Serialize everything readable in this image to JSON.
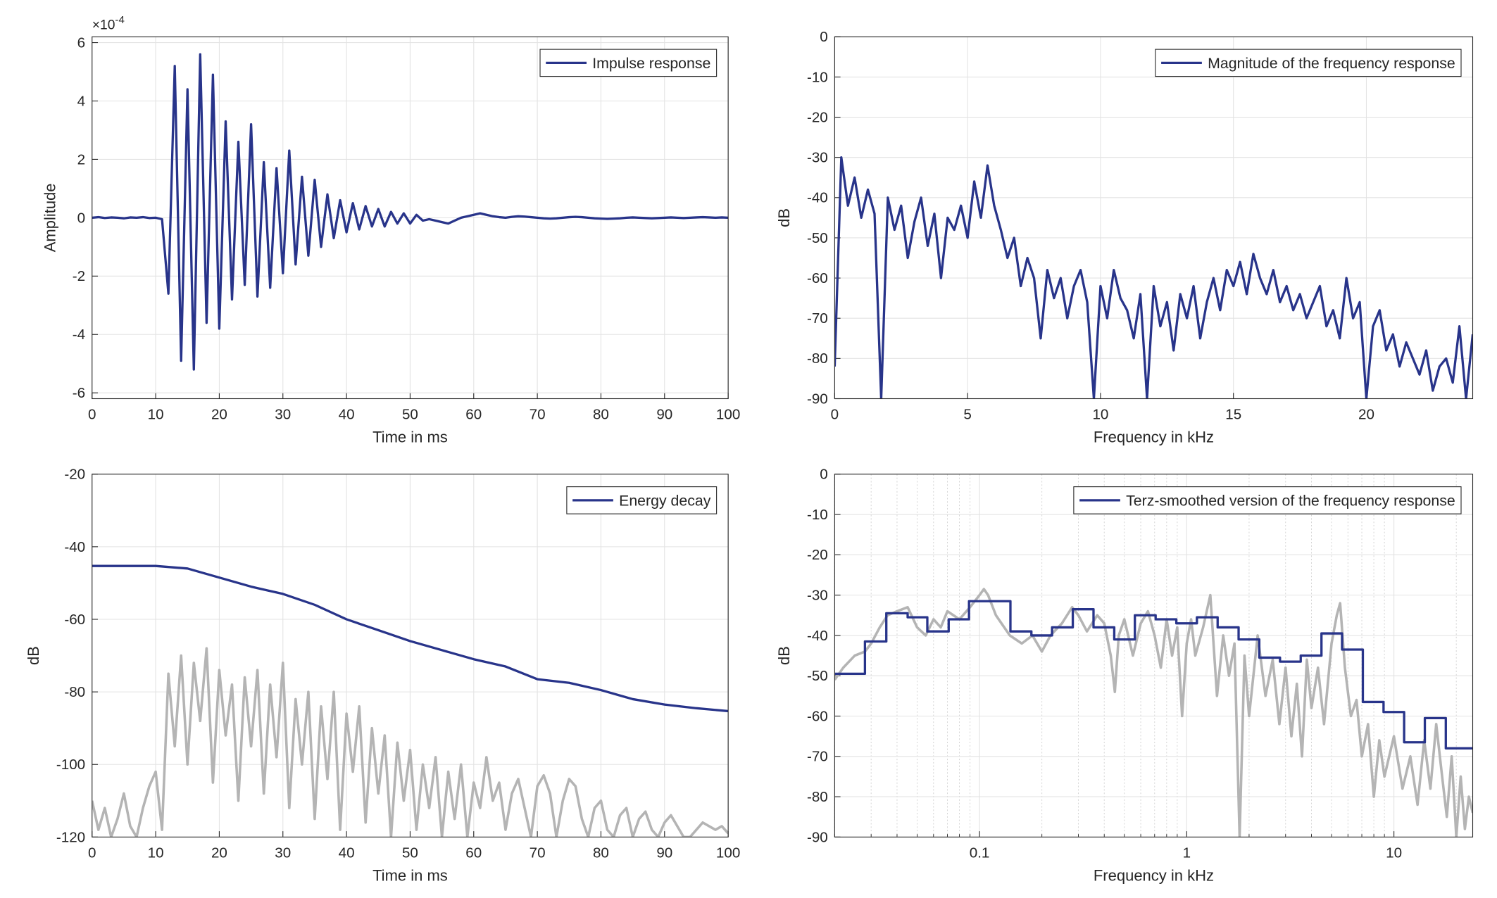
{
  "chart_data": [
    {
      "type": "line",
      "xlabel": "Time in ms",
      "ylabel": "Amplitude",
      "y_multiplier": "×10",
      "y_multiplier_exponent": "-4",
      "xlim": [
        0,
        100
      ],
      "xticks": [
        0,
        10,
        20,
        30,
        40,
        50,
        60,
        70,
        80,
        90,
        100
      ],
      "ylim": [
        -6.2,
        6.2
      ],
      "yticks": [
        -6,
        -4,
        -2,
        0,
        2,
        4,
        6
      ],
      "grid": true,
      "legend": "northeast",
      "series": [
        {
          "name": "Impulse response",
          "color": "#28348a",
          "x": [
            0,
            1,
            2,
            3,
            4,
            5,
            6,
            7,
            8,
            9,
            10,
            11,
            12,
            13,
            14,
            15,
            16,
            17,
            18,
            19,
            20,
            21,
            22,
            23,
            24,
            25,
            26,
            27,
            28,
            29,
            30,
            31,
            32,
            33,
            34,
            35,
            36,
            37,
            38,
            39,
            40,
            41,
            42,
            43,
            44,
            45,
            46,
            47,
            48,
            49,
            50,
            51,
            52,
            53,
            54,
            55,
            56,
            57,
            58,
            59,
            60,
            61,
            62,
            63,
            64,
            65,
            66,
            67,
            68,
            69,
            70,
            71,
            72,
            73,
            74,
            75,
            76,
            77,
            78,
            79,
            80,
            81,
            82,
            83,
            84,
            85,
            86,
            87,
            88,
            89,
            90,
            91,
            92,
            93,
            94,
            95,
            96,
            97,
            98,
            99,
            100
          ],
          "values": [
            0,
            0.02,
            -0.01,
            0.01,
            0,
            -0.02,
            0.01,
            0,
            0.02,
            -0.01,
            0,
            -0.05,
            -2.6,
            5.2,
            -4.9,
            4.4,
            -5.2,
            5.6,
            -3.6,
            4.9,
            -3.8,
            3.3,
            -2.8,
            2.6,
            -2.3,
            3.2,
            -2.7,
            1.9,
            -2.4,
            1.7,
            -1.9,
            2.3,
            -1.6,
            1.4,
            -1.3,
            1.3,
            -1.0,
            0.8,
            -0.7,
            0.6,
            -0.5,
            0.5,
            -0.4,
            0.4,
            -0.3,
            0.3,
            -0.3,
            0.2,
            -0.2,
            0.15,
            -0.2,
            0.1,
            -0.1,
            -0.05,
            -0.1,
            -0.15,
            -0.2,
            -0.1,
            0,
            0.05,
            0.1,
            0.15,
            0.1,
            0.05,
            0.02,
            0,
            0.03,
            0.05,
            0.04,
            0.02,
            0,
            -0.02,
            -0.03,
            -0.02,
            0,
            0.02,
            0.03,
            0.02,
            0,
            -0.02,
            -0.03,
            -0.04,
            -0.03,
            -0.02,
            0,
            0.01,
            0,
            -0.01,
            -0.02,
            -0.01,
            0,
            0.01,
            0,
            -0.01,
            0,
            0.01,
            0.02,
            0.01,
            0,
            0.01,
            0
          ]
        }
      ]
    },
    {
      "type": "line",
      "xlabel": "Frequency in kHz",
      "ylabel": "dB",
      "xlim": [
        0,
        24
      ],
      "xticks": [
        0,
        5,
        10,
        15,
        20
      ],
      "ylim": [
        -90,
        0
      ],
      "yticks": [
        -90,
        -80,
        -70,
        -60,
        -50,
        -40,
        -30,
        -20,
        -10,
        0
      ],
      "grid": true,
      "legend": "northeast",
      "series": [
        {
          "name": "Magnitude of the frequency response",
          "color": "#28348a",
          "x": [
            0,
            0.25,
            0.5,
            0.75,
            1,
            1.25,
            1.5,
            1.75,
            2,
            2.25,
            2.5,
            2.75,
            3,
            3.25,
            3.5,
            3.75,
            4,
            4.25,
            4.5,
            4.75,
            5,
            5.25,
            5.5,
            5.75,
            6,
            6.25,
            6.5,
            6.75,
            7,
            7.25,
            7.5,
            7.75,
            8,
            8.25,
            8.5,
            8.75,
            9,
            9.25,
            9.5,
            9.75,
            10,
            10.25,
            10.5,
            10.75,
            11,
            11.25,
            11.5,
            11.75,
            12,
            12.25,
            12.5,
            12.75,
            13,
            13.25,
            13.5,
            13.75,
            14,
            14.25,
            14.5,
            14.75,
            15,
            15.25,
            15.5,
            15.75,
            16,
            16.25,
            16.5,
            16.75,
            17,
            17.25,
            17.5,
            17.75,
            18,
            18.25,
            18.5,
            18.75,
            19,
            19.25,
            19.5,
            19.75,
            20,
            20.25,
            20.5,
            20.75,
            21,
            21.25,
            21.5,
            21.75,
            22,
            22.25,
            22.5,
            22.75,
            23,
            23.25,
            23.5,
            23.75,
            24
          ],
          "values": [
            -82,
            -30,
            -42,
            -35,
            -45,
            -38,
            -44,
            -90,
            -40,
            -48,
            -42,
            -55,
            -46,
            -40,
            -52,
            -44,
            -60,
            -45,
            -48,
            -42,
            -50,
            -36,
            -45,
            -32,
            -42,
            -48,
            -55,
            -50,
            -62,
            -55,
            -60,
            -75,
            -58,
            -65,
            -60,
            -70,
            -62,
            -58,
            -66,
            -90,
            -62,
            -70,
            -58,
            -65,
            -68,
            -75,
            -64,
            -90,
            -62,
            -72,
            -66,
            -78,
            -64,
            -70,
            -62,
            -75,
            -66,
            -60,
            -68,
            -58,
            -62,
            -56,
            -64,
            -54,
            -60,
            -64,
            -58,
            -66,
            -62,
            -68,
            -64,
            -70,
            -66,
            -62,
            -72,
            -68,
            -75,
            -60,
            -70,
            -66,
            -90,
            -72,
            -68,
            -78,
            -74,
            -82,
            -76,
            -80,
            -84,
            -78,
            -88,
            -82,
            -80,
            -86,
            -72,
            -90,
            -74
          ]
        }
      ]
    },
    {
      "type": "line",
      "xlabel": "Time in ms",
      "ylabel": "dB",
      "xlim": [
        0,
        100
      ],
      "xticks": [
        0,
        10,
        20,
        30,
        40,
        50,
        60,
        70,
        80,
        90,
        100
      ],
      "ylim": [
        -120,
        -20
      ],
      "yticks": [
        -120,
        -100,
        -80,
        -60,
        -40,
        -20
      ],
      "grid": true,
      "legend": "northeast",
      "series": [
        {
          "color": "#b4b4b4",
          "x": [
            0,
            1,
            2,
            3,
            4,
            5,
            6,
            7,
            8,
            9,
            10,
            11,
            12,
            13,
            14,
            15,
            16,
            17,
            18,
            19,
            20,
            21,
            22,
            23,
            24,
            25,
            26,
            27,
            28,
            29,
            30,
            31,
            32,
            33,
            34,
            35,
            36,
            37,
            38,
            39,
            40,
            41,
            42,
            43,
            44,
            45,
            46,
            47,
            48,
            49,
            50,
            51,
            52,
            53,
            54,
            55,
            56,
            57,
            58,
            59,
            60,
            61,
            62,
            63,
            64,
            65,
            66,
            67,
            68,
            69,
            70,
            71,
            72,
            73,
            74,
            75,
            76,
            77,
            78,
            79,
            80,
            81,
            82,
            83,
            84,
            85,
            86,
            87,
            88,
            89,
            90,
            91,
            92,
            93,
            94,
            95,
            96,
            97,
            98,
            99,
            100
          ],
          "values": [
            -110,
            -118,
            -112,
            -120,
            -115,
            -108,
            -117,
            -120,
            -112,
            -106,
            -102,
            -118,
            -75,
            -95,
            -70,
            -100,
            -72,
            -88,
            -68,
            -105,
            -74,
            -92,
            -78,
            -110,
            -76,
            -95,
            -74,
            -108,
            -78,
            -98,
            -72,
            -112,
            -82,
            -100,
            -80,
            -115,
            -84,
            -104,
            -80,
            -118,
            -86,
            -102,
            -84,
            -116,
            -90,
            -108,
            -92,
            -120,
            -94,
            -110,
            -96,
            -118,
            -100,
            -112,
            -98,
            -120,
            -102,
            -115,
            -100,
            -120,
            -105,
            -112,
            -98,
            -110,
            -105,
            -118,
            -108,
            -104,
            -112,
            -120,
            -106,
            -103,
            -108,
            -120,
            -110,
            -104,
            -106,
            -115,
            -120,
            -112,
            -110,
            -118,
            -120,
            -114,
            -112,
            -120,
            -115,
            -113,
            -118,
            -120,
            -116,
            -114,
            -117,
            -120,
            -120,
            -118,
            -116,
            -117,
            -118,
            -117,
            -119
          ]
        },
        {
          "name": "Energy decay",
          "color": "#28348a",
          "x": [
            0,
            5,
            10,
            15,
            20,
            25,
            30,
            35,
            40,
            45,
            50,
            55,
            60,
            65,
            70,
            75,
            80,
            85,
            90,
            95,
            100
          ],
          "values": [
            -45.3,
            -45.3,
            -45.3,
            -46,
            -48.5,
            -51,
            -53,
            -56,
            -60,
            -63,
            -66,
            -68.5,
            -71,
            -73,
            -76.5,
            -77.5,
            -79.5,
            -82,
            -83.5,
            -84.5,
            -85.3
          ]
        }
      ]
    },
    {
      "type": "line",
      "xlabel": "Frequency in kHz",
      "ylabel": "dB",
      "xlog": true,
      "xlim": [
        0.02,
        24
      ],
      "xticks": [
        0.1,
        1,
        10
      ],
      "xminorticks": [
        0.02,
        0.03,
        0.04,
        0.05,
        0.06,
        0.07,
        0.08,
        0.09,
        0.2,
        0.3,
        0.4,
        0.5,
        0.6,
        0.7,
        0.8,
        0.9,
        2,
        3,
        4,
        5,
        6,
        7,
        8,
        9,
        20
      ],
      "ylim": [
        -90,
        0
      ],
      "yticks": [
        -90,
        -80,
        -70,
        -60,
        -50,
        -40,
        -30,
        -20,
        -10,
        0
      ],
      "grid": true,
      "legend": "northeast",
      "series": [
        {
          "color": "#b4b4b4",
          "x": [
            0.02,
            0.022,
            0.025,
            0.028,
            0.03,
            0.033,
            0.036,
            0.04,
            0.045,
            0.05,
            0.055,
            0.06,
            0.065,
            0.07,
            0.08,
            0.09,
            0.1,
            0.105,
            0.11,
            0.12,
            0.14,
            0.16,
            0.18,
            0.2,
            0.22,
            0.25,
            0.28,
            0.3,
            0.33,
            0.37,
            0.4,
            0.43,
            0.45,
            0.47,
            0.5,
            0.55,
            0.6,
            0.65,
            0.7,
            0.75,
            0.8,
            0.85,
            0.9,
            0.95,
            1.0,
            1.05,
            1.1,
            1.2,
            1.3,
            1.4,
            1.5,
            1.6,
            1.7,
            1.8,
            1.9,
            2.0,
            2.2,
            2.4,
            2.6,
            2.8,
            3.0,
            3.2,
            3.4,
            3.6,
            3.8,
            4.0,
            4.3,
            4.6,
            5.0,
            5.3,
            5.5,
            5.8,
            6.2,
            6.6,
            7.0,
            7.5,
            8.0,
            8.5,
            9.0,
            10,
            11,
            12,
            13,
            14,
            15,
            16,
            17,
            18,
            19,
            20,
            21,
            22,
            23,
            24
          ],
          "values": [
            -51,
            -48,
            -45,
            -44,
            -42,
            -38,
            -35,
            -34,
            -33,
            -38,
            -40,
            -36,
            -38,
            -34,
            -36,
            -33,
            -30,
            -28.5,
            -30,
            -35,
            -40,
            -42,
            -40,
            -44,
            -40,
            -37,
            -33,
            -35,
            -39,
            -35,
            -37,
            -45,
            -54,
            -40,
            -36,
            -45,
            -37,
            -34,
            -40,
            -48,
            -36,
            -45,
            -38,
            -60,
            -42,
            -36,
            -45,
            -38,
            -30,
            -55,
            -40,
            -50,
            -42,
            -90,
            -45,
            -60,
            -40,
            -55,
            -46,
            -62,
            -48,
            -65,
            -52,
            -70,
            -46,
            -58,
            -48,
            -62,
            -42,
            -35,
            -32,
            -48,
            -60,
            -56,
            -70,
            -62,
            -80,
            -66,
            -75,
            -65,
            -78,
            -70,
            -82,
            -66,
            -78,
            -62,
            -74,
            -85,
            -70,
            -90,
            -75,
            -88,
            -80,
            -84
          ]
        },
        {
          "name": "Terz-smoothed version of the frequency response",
          "color": "#28348a",
          "step": true,
          "x": [
            0.02,
            0.028,
            0.0355,
            0.045,
            0.056,
            0.071,
            0.089,
            0.141,
            0.178,
            0.224,
            0.282,
            0.355,
            0.447,
            0.562,
            0.708,
            0.891,
            1.12,
            1.41,
            1.78,
            2.24,
            2.82,
            3.55,
            4.47,
            5.62,
            7.08,
            8.91,
            11.2,
            14.1,
            17.8
          ],
          "values": [
            -49.5,
            -41.5,
            -34.5,
            -35.5,
            -39,
            -36,
            -31.5,
            -39,
            -40,
            -38,
            -33.5,
            -38,
            -41,
            -35,
            -36,
            -37,
            -35.5,
            -38,
            -41,
            -45.5,
            -46.5,
            -45,
            -39.5,
            -43.5,
            -56.5,
            -59,
            -66.5,
            -60.5,
            -68
          ]
        }
      ]
    }
  ]
}
